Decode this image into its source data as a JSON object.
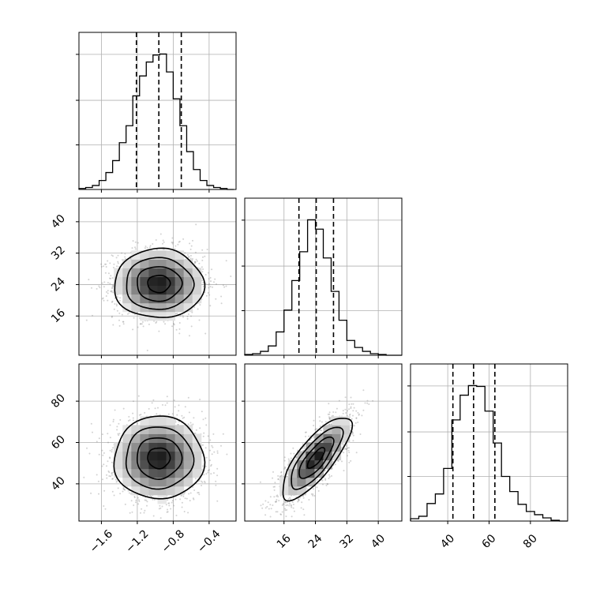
{
  "chart_data": {
    "type": "corner",
    "parameters": [
      {
        "range": [
          -1.85,
          -0.1
        ],
        "ticks": [
          -1.6,
          -1.2,
          -0.8,
          -0.4
        ],
        "tick_labels": [
          "−1.6",
          "−1.2",
          "−0.8",
          "−0.4"
        ],
        "quantiles": [
          -1.21,
          -0.96,
          -0.71
        ],
        "histogram": {
          "bin_edges": [
            -1.85,
            -1.775,
            -1.7,
            -1.625,
            -1.55,
            -1.475,
            -1.4,
            -1.325,
            -1.25,
            -1.175,
            -1.1,
            -1.025,
            -0.95,
            -0.875,
            -0.8,
            -0.725,
            -0.65,
            -0.575,
            -0.5,
            -0.425,
            -0.35,
            -0.275,
            -0.2,
            -0.125
          ],
          "counts": [
            1,
            2,
            4,
            9,
            17,
            29,
            47,
            64,
            94,
            114,
            128,
            135,
            136,
            118,
            91,
            64,
            38,
            20,
            9,
            4,
            2,
            1,
            0
          ]
        }
      },
      {
        "range": [
          6.0,
          46.0
        ],
        "ticks": [
          16,
          24,
          32,
          40
        ],
        "tick_labels": [
          "16",
          "24",
          "32",
          "40"
        ],
        "quantiles": [
          19.8,
          24.2,
          28.6
        ],
        "histogram": {
          "bin_edges": [
            6,
            8,
            10,
            12,
            14,
            16,
            18,
            20,
            22,
            24,
            26,
            28,
            30,
            32,
            34,
            36,
            38,
            40,
            42,
            44,
            46
          ],
          "counts": [
            1,
            2,
            5,
            12,
            30,
            58,
            96,
            133,
            174,
            162,
            125,
            82,
            45,
            19,
            10,
            5,
            2,
            1,
            0,
            0
          ]
        }
      },
      {
        "range": [
          22.0,
          98.0
        ],
        "ticks": [
          40,
          60,
          80
        ],
        "tick_labels": [
          "40",
          "60",
          "80"
        ],
        "quantiles": [
          42.5,
          52.5,
          62.8
        ],
        "histogram": {
          "bin_edges": [
            22,
            26,
            30,
            34,
            38,
            42,
            46,
            50,
            54,
            58,
            62,
            66,
            70,
            74,
            78,
            82,
            86,
            90,
            94,
            98
          ],
          "counts": [
            3,
            6,
            22,
            34,
            66,
            127,
            158,
            170,
            169,
            138,
            98,
            56,
            37,
            21,
            12,
            8,
            4,
            1,
            0
          ]
        }
      }
    ],
    "panels_2d": [
      {
        "x_param": 0,
        "y_param": 1,
        "center": [
          -0.96,
          24.2
        ],
        "sd": [
          0.25,
          4.4
        ],
        "correlation": 0.0,
        "yticks": [
          16,
          24,
          32,
          40
        ],
        "ytick_labels": [
          "16",
          "24",
          "32",
          "40"
        ],
        "contour_levels_sigma": [
          0.5,
          1.0,
          1.5,
          2.0
        ]
      },
      {
        "x_param": 0,
        "y_param": 2,
        "center": [
          -0.96,
          52.5
        ],
        "sd": [
          0.25,
          10.0
        ],
        "correlation": 0.0,
        "yticks": [
          40,
          60,
          80
        ],
        "ytick_labels": [
          "40",
          "60",
          "80"
        ],
        "contour_levels_sigma": [
          0.5,
          1.0,
          1.5,
          2.0
        ]
      },
      {
        "x_param": 1,
        "y_param": 2,
        "center": [
          24.2,
          52.5
        ],
        "sd": [
          4.4,
          10.0
        ],
        "correlation": 0.78,
        "contour_levels_sigma": [
          0.5,
          1.0,
          1.5,
          2.0
        ]
      }
    ],
    "grid": true,
    "colors": {
      "line": "#000000",
      "grid": "#b0b0b0",
      "points": "#7f7f7f",
      "density_light": "#e8e8e8",
      "density_dark": "#1a1a1a"
    }
  }
}
